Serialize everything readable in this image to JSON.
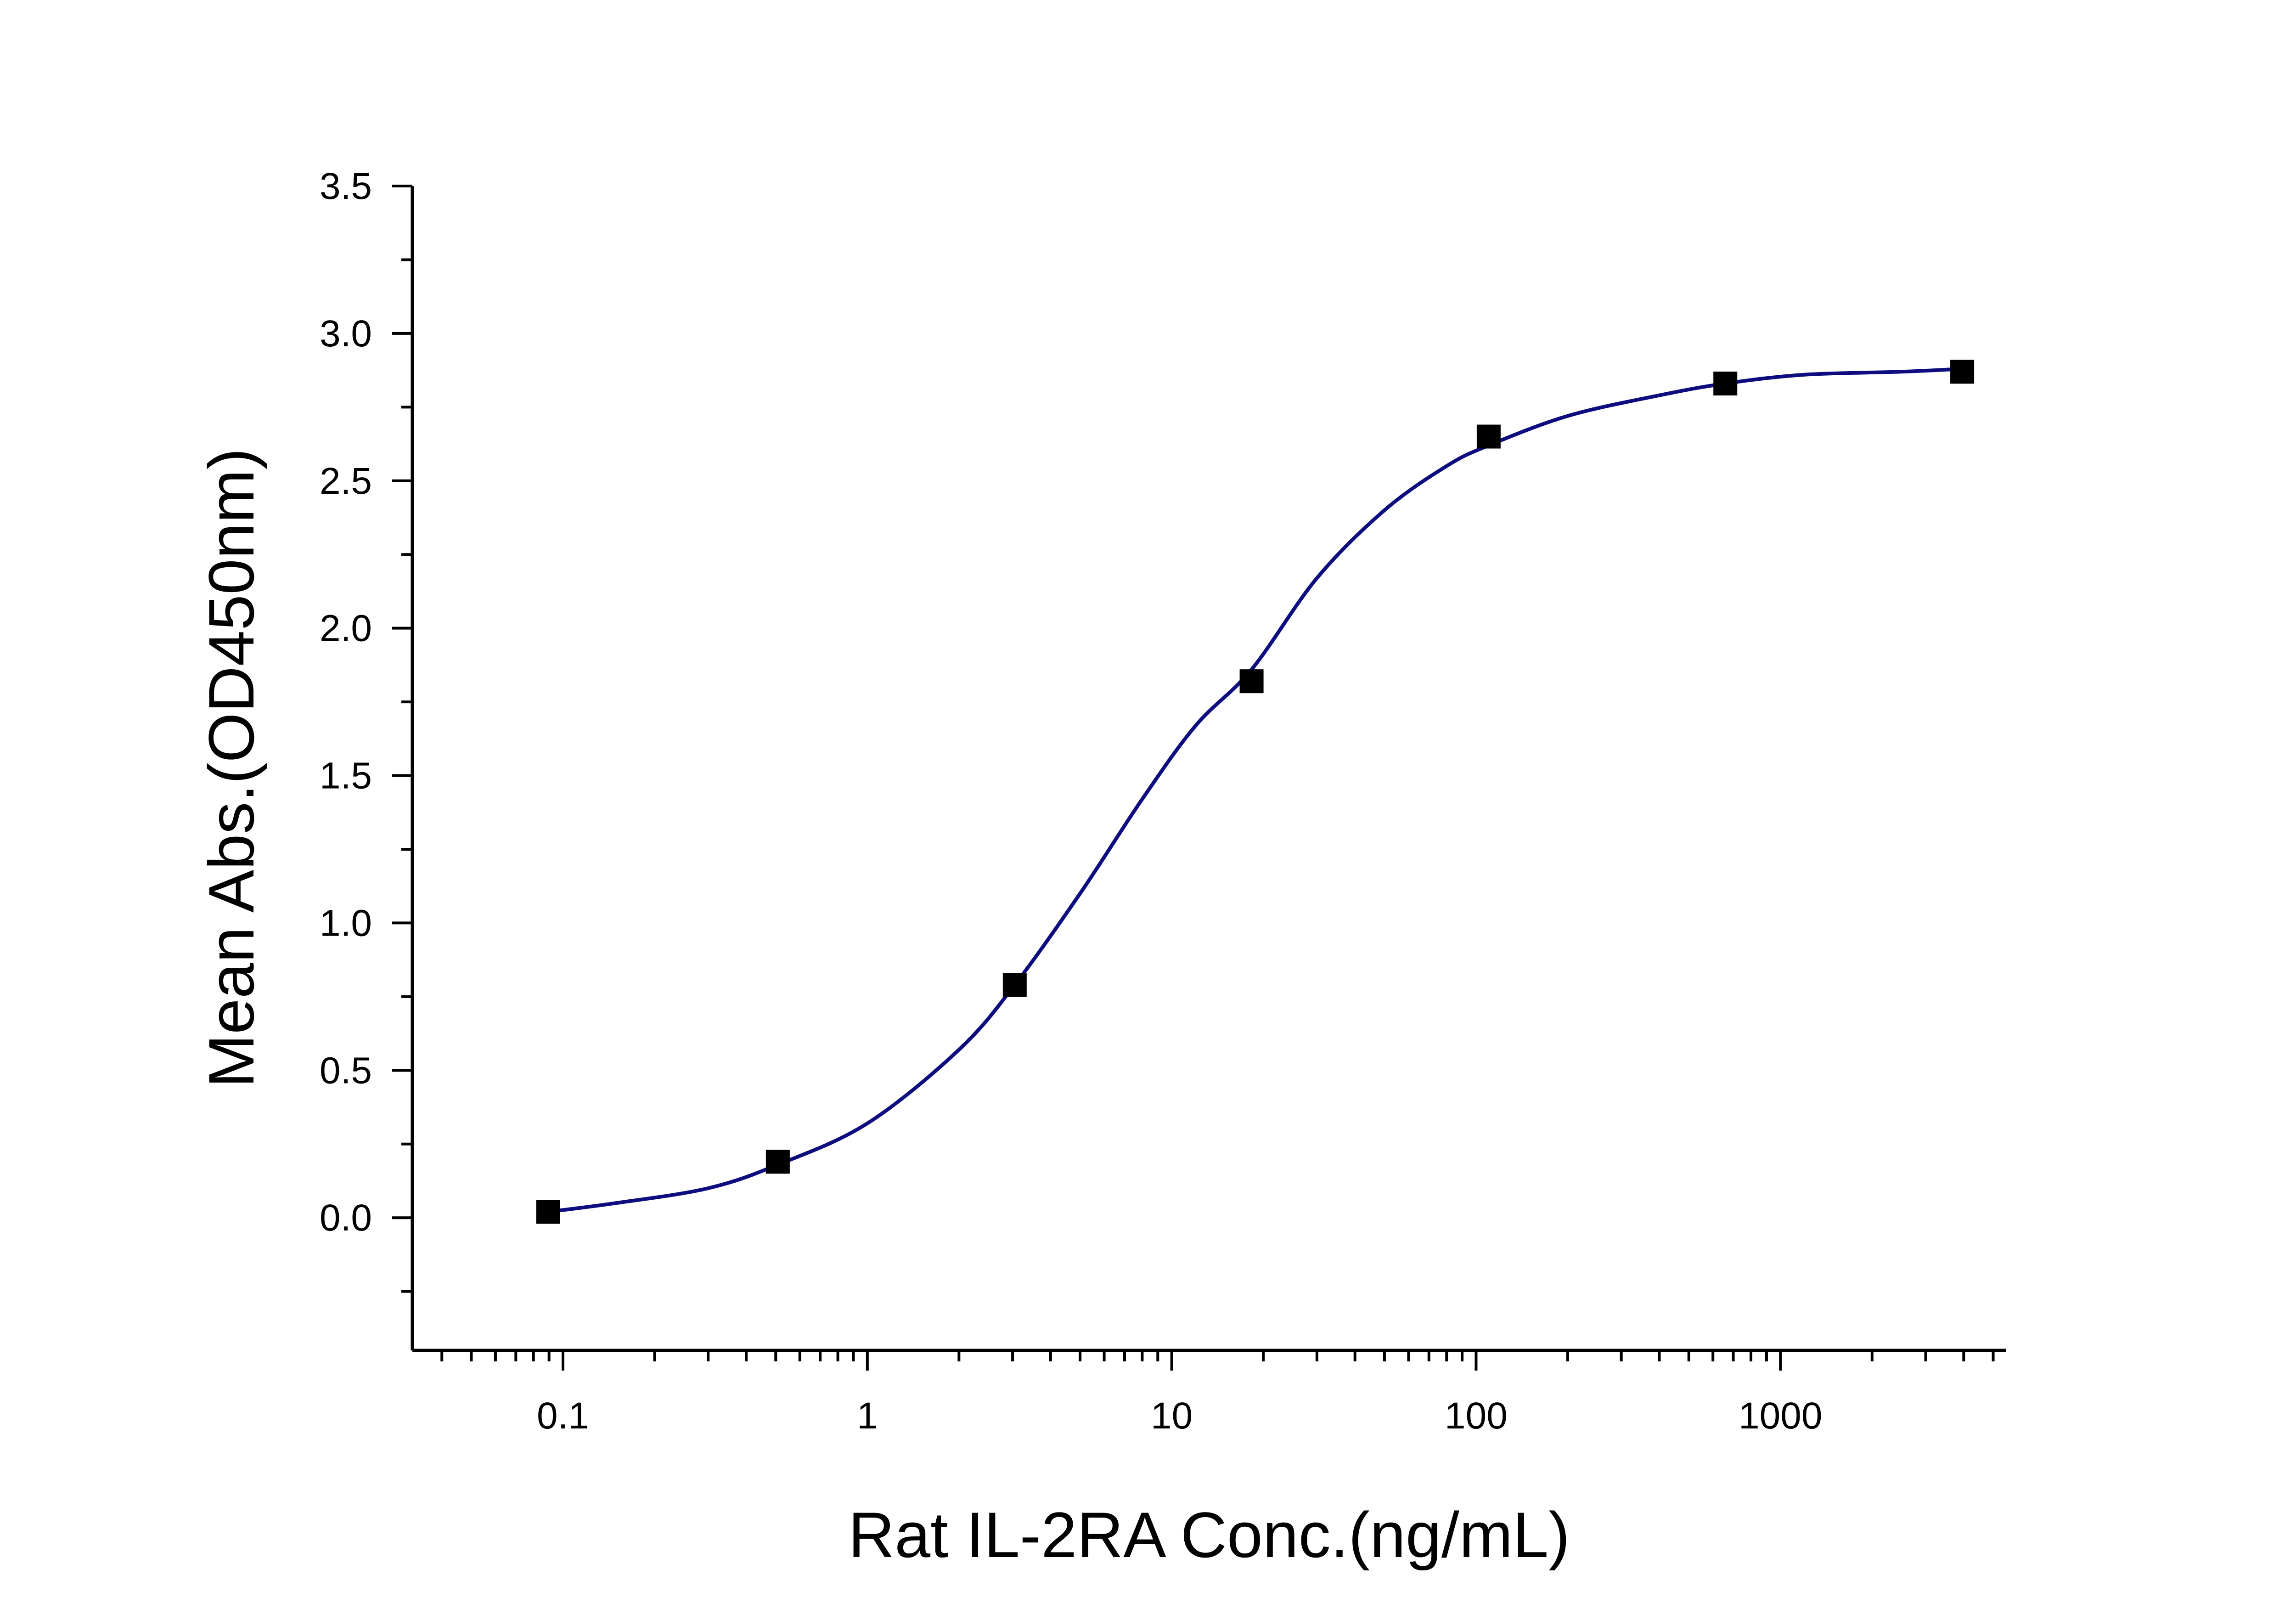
{
  "chart_data": {
    "type": "scatter",
    "title": "",
    "xlabel": "Rat IL-2RA Conc.(ng/mL)",
    "ylabel": "Mean Abs.(OD450nm)",
    "x_scale": "log",
    "xlim": [
      0.032,
      5500
    ],
    "ylim": [
      -0.45,
      3.5
    ],
    "x_ticks": [
      0.1,
      1,
      10,
      100,
      1000
    ],
    "x_tick_labels": [
      "0.1",
      "1",
      "10",
      "100",
      "1000"
    ],
    "y_ticks": [
      0.0,
      0.5,
      1.0,
      1.5,
      2.0,
      2.5,
      3.0,
      3.5
    ],
    "y_tick_labels": [
      "0.0",
      "0.5",
      "1.0",
      "1.5",
      "2.0",
      "2.5",
      "3.0",
      "3.5"
    ],
    "grid": false,
    "legend": "none",
    "series": [
      {
        "kind": "points",
        "marker": "square",
        "color": "#000000",
        "x": [
          0.0894,
          0.508,
          3.05,
          18.3,
          110,
          659,
          3955
        ],
        "y": [
          0.02,
          0.19,
          0.79,
          1.82,
          2.65,
          2.83,
          2.87
        ]
      },
      {
        "kind": "fit-curve",
        "color": "#0d0d80",
        "x": [
          0.0894,
          0.15,
          0.3,
          0.508,
          1,
          2,
          3.05,
          5,
          8,
          12,
          18.3,
          30,
          50,
          80,
          110,
          200,
          400,
          659,
          1200,
          2500,
          3955
        ],
        "y": [
          0.02,
          0.05,
          0.1,
          0.18,
          0.32,
          0.57,
          0.79,
          1.1,
          1.42,
          1.67,
          1.86,
          2.17,
          2.4,
          2.55,
          2.62,
          2.72,
          2.79,
          2.83,
          2.86,
          2.87,
          2.88
        ]
      }
    ]
  }
}
